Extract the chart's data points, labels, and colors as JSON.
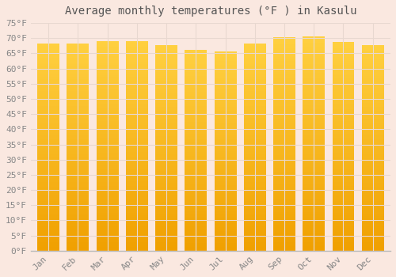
{
  "title": "Average monthly temperatures (°F ) in Kasulu",
  "months": [
    "Jan",
    "Feb",
    "Mar",
    "Apr",
    "May",
    "Jun",
    "Jul",
    "Aug",
    "Sep",
    "Oct",
    "Nov",
    "Dec"
  ],
  "values": [
    68.2,
    68.2,
    68.9,
    69.1,
    67.6,
    66.2,
    65.7,
    68.2,
    70.2,
    70.5,
    68.7,
    67.8
  ],
  "bar_color_center": "#FFD040",
  "bar_color_edge": "#F0A000",
  "ylim": [
    0,
    75
  ],
  "ytick_step": 5,
  "background_color": "#FAE8E0",
  "plot_bg_color": "#FAE8E0",
  "grid_color": "#E8D8D0",
  "title_fontsize": 10,
  "tick_fontsize": 8,
  "tick_color": "#888888",
  "font_family": "monospace"
}
